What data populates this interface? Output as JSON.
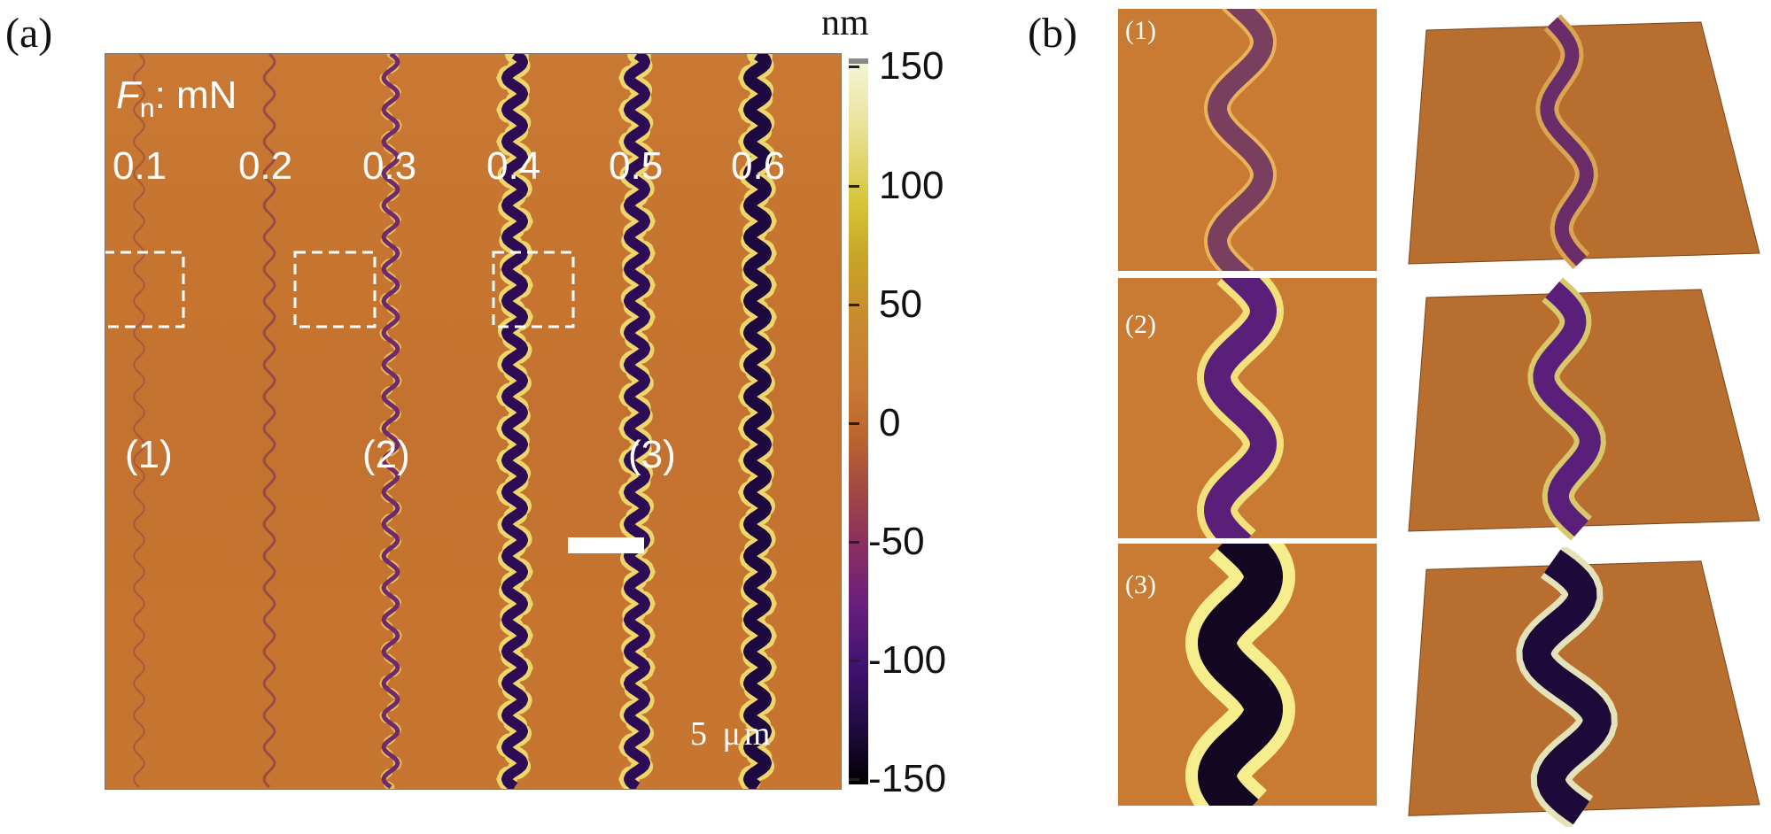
{
  "panel_a": {
    "label": "(a)",
    "force_symbol": "F",
    "force_subscript": "n",
    "force_unit": ": mN",
    "force_values": [
      "0.1",
      "0.2",
      "0.3",
      "0.4",
      "0.5",
      "0.6"
    ],
    "region_labels": [
      "(1)",
      "(2)",
      "(3)"
    ],
    "scale_bar_text": "5 μm",
    "colorbar": {
      "unit": "nm",
      "tick_labels": [
        "150",
        "100",
        "50",
        "0",
        "-50",
        "-100",
        "-150"
      ],
      "range": [
        -150,
        150
      ]
    }
  },
  "panel_b": {
    "label": "(b)",
    "sub_labels": [
      "(1)",
      "(2)",
      "(3)"
    ]
  },
  "colors": {
    "substrate": "#c97a33",
    "groove_dark": "#3b0f63",
    "pile_up": "#f3e27a",
    "colorbar_high": "#f4f6d8",
    "colorbar_low": "#000000"
  }
}
